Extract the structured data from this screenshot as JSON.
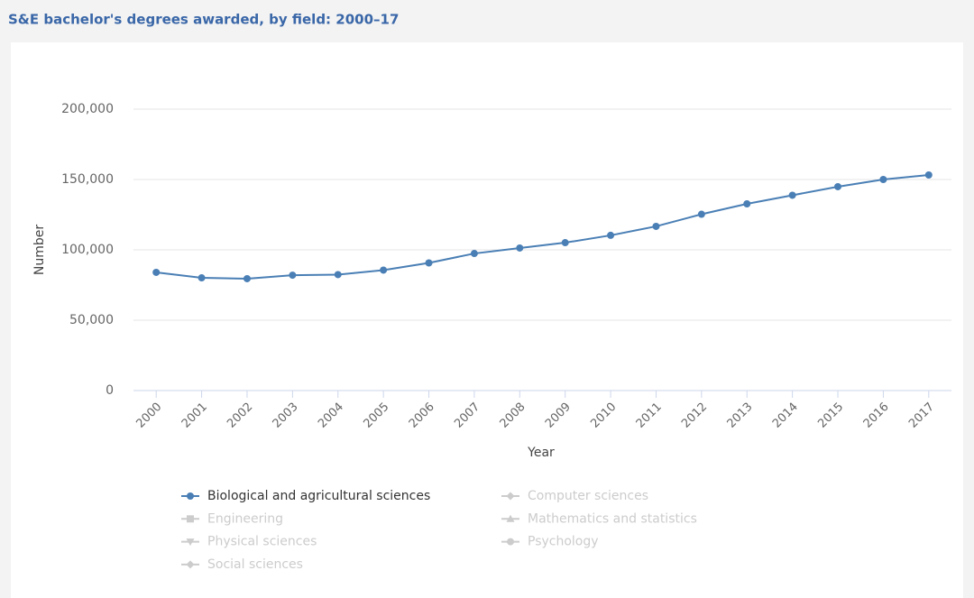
{
  "chart_data": {
    "type": "line",
    "title": "S&E bachelor's degrees awarded, by field: 2000–17",
    "x_label": "Year",
    "y_label": "Number",
    "categories": [
      "2000",
      "2001",
      "2002",
      "2003",
      "2004",
      "2005",
      "2006",
      "2007",
      "2008",
      "2009",
      "2010",
      "2011",
      "2012",
      "2013",
      "2014",
      "2015",
      "2016",
      "2017"
    ],
    "series": [
      {
        "name": "Biological and agricultural sciences",
        "color": "#4a7fb5",
        "marker": "circle",
        "visible": true,
        "values": [
          84000,
          80100,
          79500,
          82000,
          82400,
          85600,
          90700,
          97400,
          101300,
          105100,
          110300,
          116700,
          125300,
          132700,
          138800,
          144900,
          150000,
          153200
        ]
      },
      {
        "name": "Computer sciences",
        "color": "#cccccc",
        "marker": "diamond",
        "visible": false
      },
      {
        "name": "Engineering",
        "color": "#cccccc",
        "marker": "square",
        "visible": false
      },
      {
        "name": "Mathematics and statistics",
        "color": "#cccccc",
        "marker": "triangle",
        "visible": false
      },
      {
        "name": "Physical sciences",
        "color": "#cccccc",
        "marker": "triangle-down",
        "visible": false
      },
      {
        "name": "Psychology",
        "color": "#cccccc",
        "marker": "circle",
        "visible": false
      },
      {
        "name": "Social sciences",
        "color": "#cccccc",
        "marker": "diamond",
        "visible": false
      }
    ],
    "ylim": [
      0,
      200000
    ],
    "yticks": [
      0,
      {
        "value": 50000,
        "label": "50,000"
      },
      {
        "value": 100000,
        "label": "100,000"
      },
      {
        "value": 150000,
        "label": "150,000"
      },
      {
        "value": 200000,
        "label": "200,000"
      }
    ],
    "grid": true
  }
}
